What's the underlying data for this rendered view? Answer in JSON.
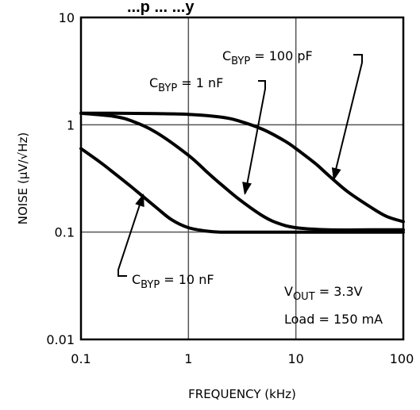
{
  "chart_data": {
    "type": "line",
    "title": "...p ... ...y",
    "xlabel": "FREQUENCY (kHz)",
    "ylabel": "NOISE (µV/√Hz)",
    "xscale": "log",
    "yscale": "log",
    "xlim": [
      0.1,
      100
    ],
    "ylim": [
      0.01,
      10
    ],
    "x_ticks": [
      0.1,
      1,
      10,
      100
    ],
    "x_tick_labels": [
      "0.1",
      "1",
      "10",
      "100"
    ],
    "y_ticks": [
      0.01,
      0.1,
      1,
      10
    ],
    "y_tick_labels": [
      "0.01",
      "0.1",
      "1",
      "10"
    ],
    "grid": true,
    "series": [
      {
        "name": "C_BYP = 100 pF",
        "label_main": "C",
        "label_sub": "BYP",
        "label_rest": " = 100 pF",
        "x": [
          0.1,
          0.2,
          0.5,
          1,
          2,
          3,
          5,
          8,
          10,
          15,
          20,
          30,
          50,
          70,
          100
        ],
        "y": [
          1.28,
          1.28,
          1.27,
          1.25,
          1.18,
          1.08,
          0.9,
          0.7,
          0.6,
          0.44,
          0.34,
          0.24,
          0.17,
          0.14,
          0.125
        ]
      },
      {
        "name": "C_BYP = 1 nF",
        "label_main": "C",
        "label_sub": "BYP",
        "label_rest": " = 1 nF",
        "x": [
          0.1,
          0.2,
          0.3,
          0.5,
          1,
          1.5,
          2,
          3,
          5,
          7,
          10,
          20,
          50,
          100
        ],
        "y": [
          1.28,
          1.2,
          1.08,
          0.85,
          0.52,
          0.36,
          0.28,
          0.2,
          0.14,
          0.12,
          0.11,
          0.105,
          0.105,
          0.105
        ]
      },
      {
        "name": "C_BYP = 10 nF",
        "label_main": "C",
        "label_sub": "BYP",
        "label_rest": " = 10 nF",
        "x": [
          0.1,
          0.15,
          0.2,
          0.3,
          0.5,
          0.7,
          1,
          1.5,
          2,
          3,
          5,
          10,
          100
        ],
        "y": [
          0.6,
          0.45,
          0.36,
          0.26,
          0.17,
          0.13,
          0.11,
          0.102,
          0.1,
          0.1,
          0.1,
          0.1,
          0.1
        ]
      }
    ],
    "annotations": {
      "vout_main": "V",
      "vout_sub": "OUT",
      "vout_rest": " = 3.3V",
      "load": "Load = 150 mA"
    }
  }
}
